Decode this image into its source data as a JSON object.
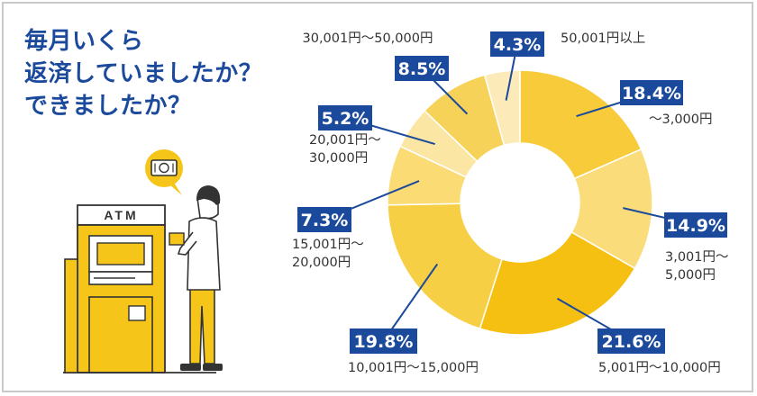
{
  "title_lines": [
    "毎月いくら",
    "返済していましたか？",
    "できましたか？"
  ],
  "atm_sign": "ATM",
  "chart_data": {
    "type": "pie",
    "style": "donut",
    "slices": [
      {
        "category": "〜3,000円",
        "value": 18.4,
        "pct_label": "18.4%",
        "label_lines": [
          "〜3,000円"
        ],
        "color": "#f7cb3a"
      },
      {
        "category": "3,001円〜5,000円",
        "value": 14.9,
        "pct_label": "14.9%",
        "label_lines": [
          "3,001円〜",
          "5,000円"
        ],
        "color": "#fadd7a"
      },
      {
        "category": "5,001円〜10,000円",
        "value": 21.6,
        "pct_label": "21.6%",
        "label_lines": [
          "5,001円〜10,000円"
        ],
        "color": "#f5c012"
      },
      {
        "category": "10,001円〜15,000円",
        "value": 19.8,
        "pct_label": "19.8%",
        "label_lines": [
          "10,001円〜15,000円"
        ],
        "color": "#f7cf45"
      },
      {
        "category": "15,001円〜20,000円",
        "value": 7.3,
        "pct_label": "7.3%",
        "label_lines": [
          "15,001円〜",
          "20,000円"
        ],
        "color": "#fadb74"
      },
      {
        "category": "20,001円〜30,000円",
        "value": 5.2,
        "pct_label": "5.2%",
        "label_lines": [
          "20,001円〜",
          "30,000円"
        ],
        "color": "#fce6a4"
      },
      {
        "category": "30,001円〜50,000円",
        "value": 8.5,
        "pct_label": "8.5%",
        "label_lines": [
          "30,001円〜50,000円"
        ],
        "color": "#f7d258"
      },
      {
        "category": "50,001円以上",
        "value": 4.3,
        "pct_label": "4.3%",
        "label_lines": [
          "50,001円以上"
        ],
        "color": "#fcebb8"
      }
    ],
    "label_box_color": "#1b4a9c",
    "accent_color": "#1b4a9c"
  }
}
